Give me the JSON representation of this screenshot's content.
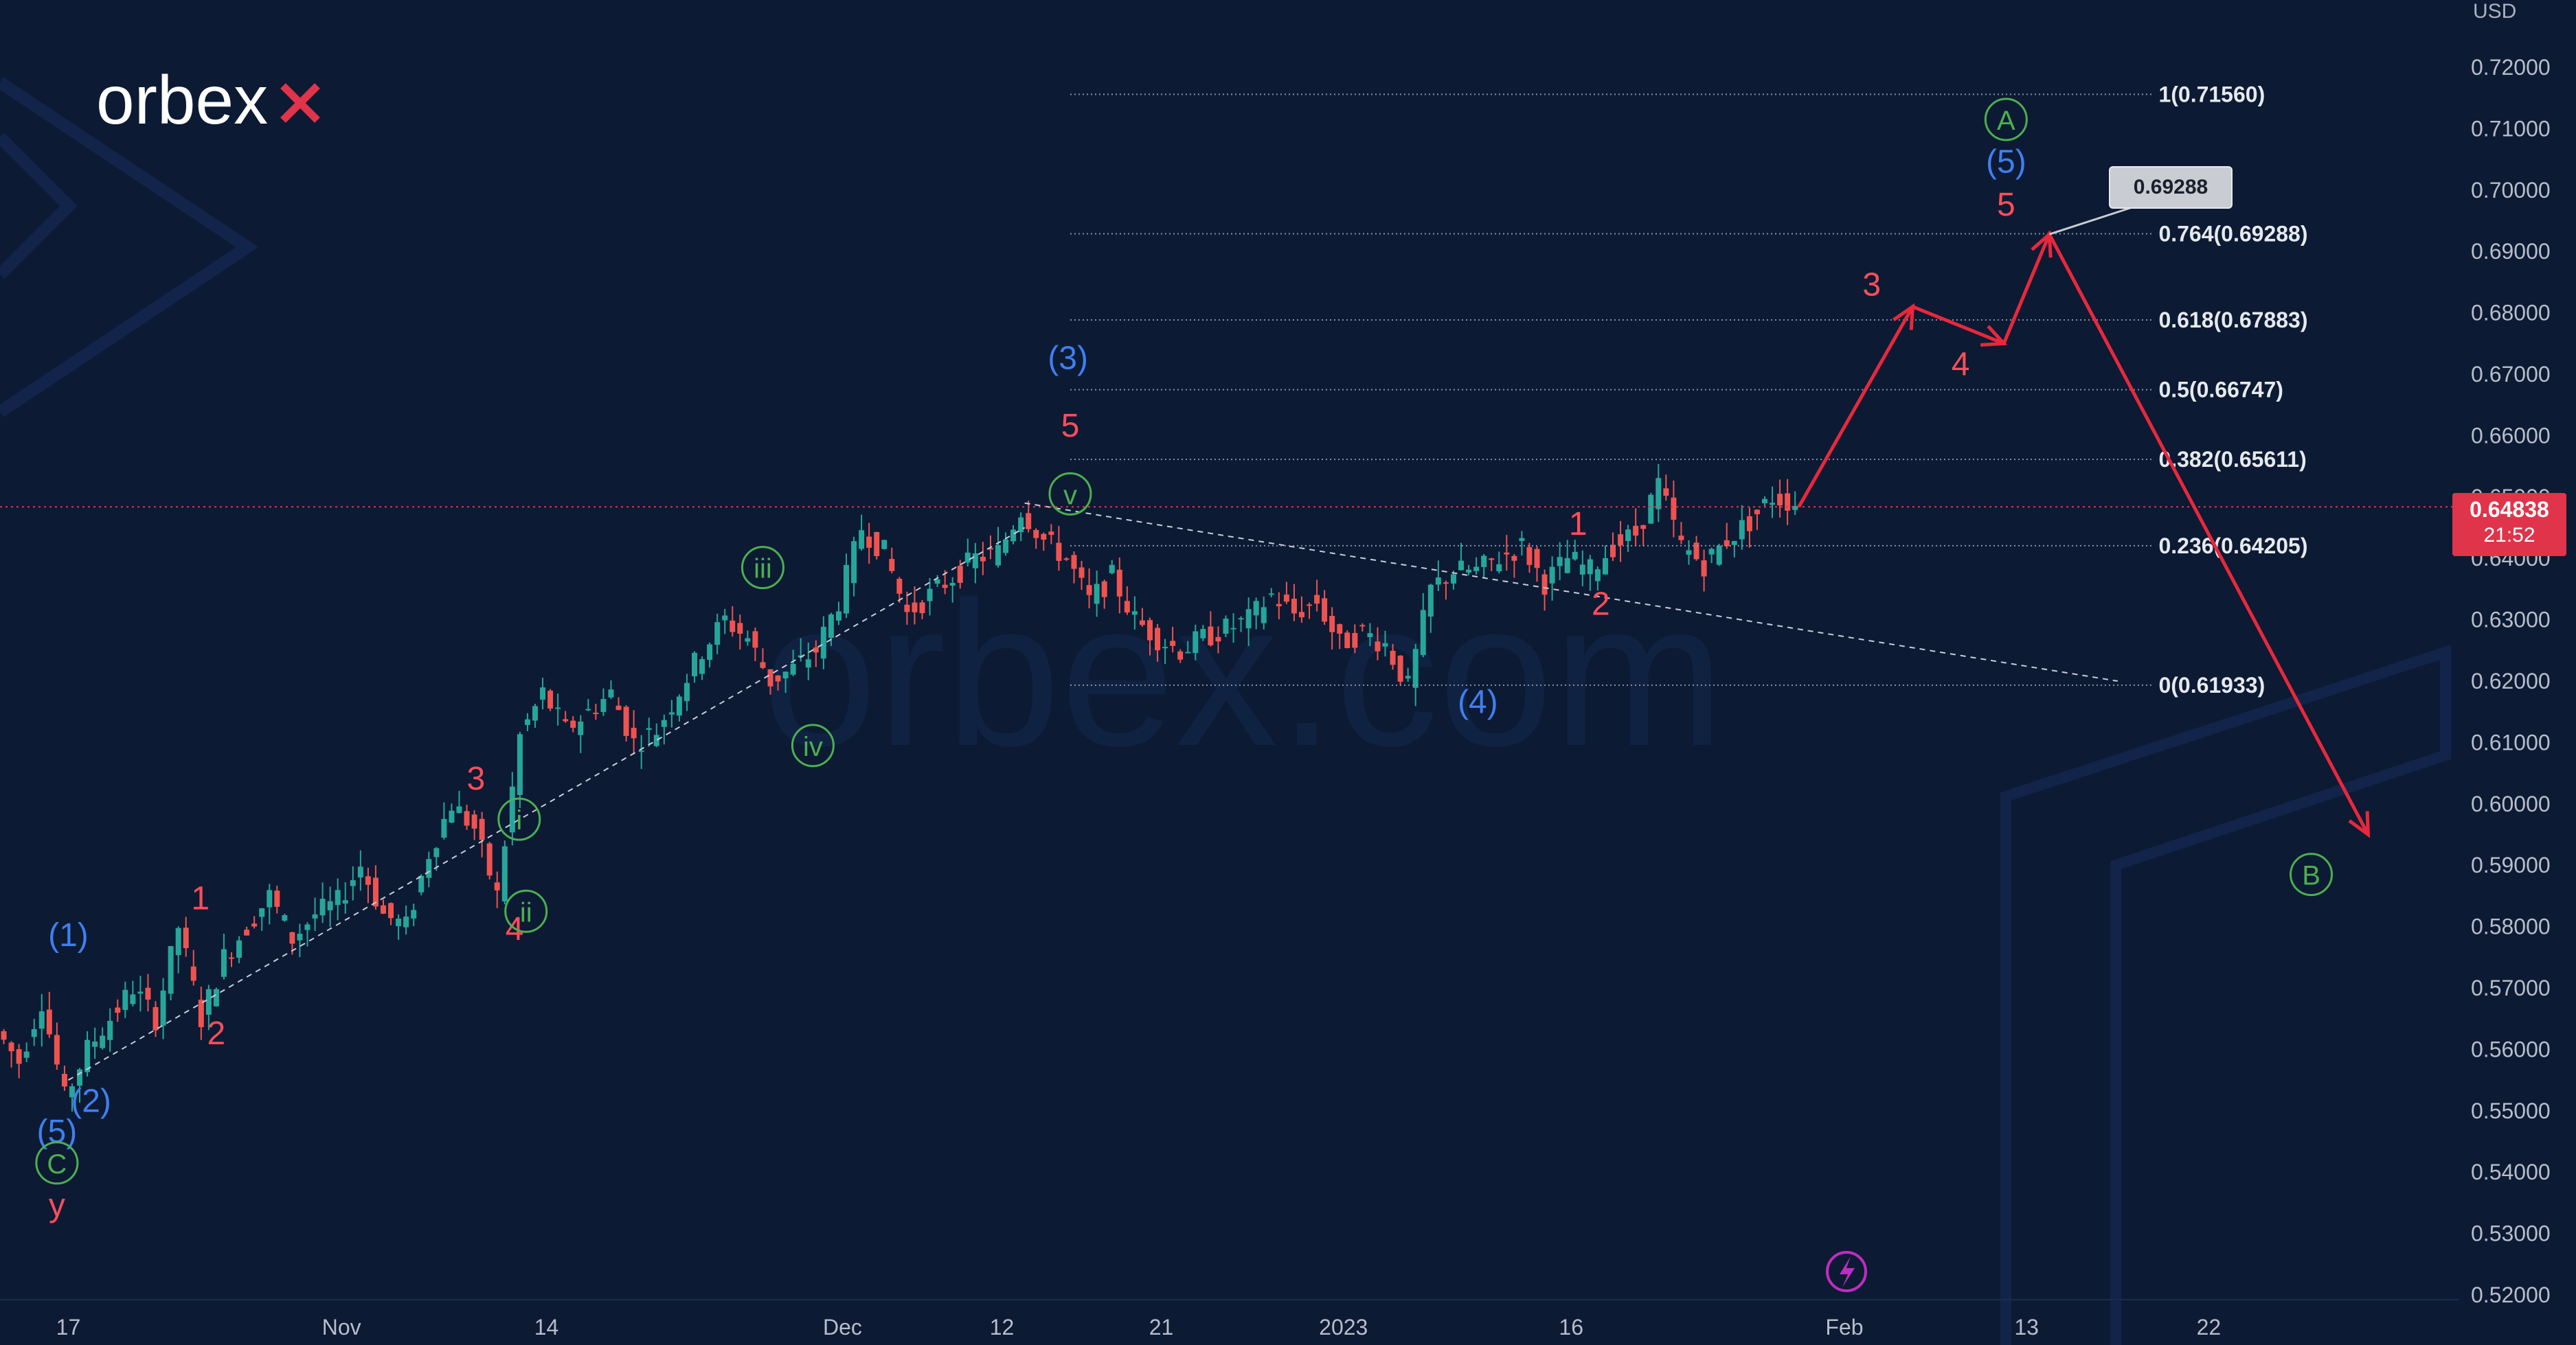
{
  "brand": {
    "logo_text": "orbex",
    "watermark": "orbex.com"
  },
  "currency_label": "USD",
  "current_price": {
    "value": "0.64838",
    "timer": "21:52"
  },
  "callout_value": "0.69288",
  "colors": {
    "background": "#0c1a33",
    "up": "#26a69a",
    "down": "#ef5350",
    "forecast": "#e8283c",
    "wave_red": "#ff4d5a",
    "wave_blue": "#3f7ff0",
    "wave_green": "#4caf50",
    "fib_line": "#8a93a6",
    "price_tag": "#e0344a"
  },
  "chart_data": {
    "type": "line",
    "title": "",
    "y_axis": {
      "unit": "USD",
      "range": [
        0.52,
        0.725
      ],
      "ticks": [
        0.52,
        0.53,
        0.54,
        0.55,
        0.56,
        0.57,
        0.58,
        0.59,
        0.6,
        0.61,
        0.62,
        0.63,
        0.64,
        0.65,
        0.66,
        0.67,
        0.68,
        0.69,
        0.7,
        0.71,
        0.72
      ],
      "tick_labels": [
        "0.52000",
        "0.53000",
        "0.54000",
        "0.55000",
        "0.56000",
        "0.57000",
        "0.58000",
        "0.59000",
        "0.60000",
        "0.61000",
        "0.62000",
        "0.63000",
        "0.64000",
        "0.65000",
        "0.66000",
        "0.67000",
        "0.68000",
        "0.69000",
        "0.70000",
        "0.71000",
        "0.72000"
      ]
    },
    "x_axis": {
      "range": [
        0,
        108
      ],
      "ticks": [
        {
          "x": 3,
          "label": "17"
        },
        {
          "x": 15,
          "label": "Nov"
        },
        {
          "x": 24,
          "label": "14"
        },
        {
          "x": 37,
          "label": "Dec"
        },
        {
          "x": 44,
          "label": "12"
        },
        {
          "x": 51,
          "label": "21"
        },
        {
          "x": 59,
          "label": "2023"
        },
        {
          "x": 69,
          "label": "16"
        },
        {
          "x": 81,
          "label": "Feb"
        },
        {
          "x": 89,
          "label": "13"
        },
        {
          "x": 97,
          "label": "22"
        }
      ]
    },
    "price_path": [
      [
        0,
        0.563
      ],
      [
        1,
        0.558
      ],
      [
        2,
        0.568
      ],
      [
        3,
        0.552
      ],
      [
        4,
        0.56
      ],
      [
        6,
        0.57
      ],
      [
        7,
        0.565
      ],
      [
        8,
        0.58
      ],
      [
        9,
        0.565
      ],
      [
        10,
        0.575
      ],
      [
        12,
        0.585
      ],
      [
        13,
        0.578
      ],
      [
        14,
        0.582
      ],
      [
        15,
        0.584
      ],
      [
        16,
        0.59
      ],
      [
        17,
        0.582
      ],
      [
        18,
        0.58
      ],
      [
        19,
        0.592
      ],
      [
        20,
        0.6
      ],
      [
        21,
        0.596
      ],
      [
        22,
        0.585
      ],
      [
        23,
        0.611
      ],
      [
        24,
        0.618
      ],
      [
        25,
        0.612
      ],
      [
        27,
        0.618
      ],
      [
        28,
        0.61
      ],
      [
        29,
        0.612
      ],
      [
        31,
        0.625
      ],
      [
        32,
        0.63
      ],
      [
        33,
        0.627
      ],
      [
        34,
        0.62
      ],
      [
        35,
        0.622
      ],
      [
        36,
        0.625
      ],
      [
        37,
        0.633
      ],
      [
        38,
        0.645
      ],
      [
        39,
        0.641
      ],
      [
        40,
        0.631
      ],
      [
        42,
        0.637
      ],
      [
        43,
        0.64
      ],
      [
        44,
        0.641
      ],
      [
        45,
        0.648
      ],
      [
        46,
        0.643
      ],
      [
        47,
        0.64
      ],
      [
        48,
        0.633
      ],
      [
        49,
        0.637
      ],
      [
        50,
        0.63
      ],
      [
        51,
        0.627
      ],
      [
        52,
        0.625
      ],
      [
        53,
        0.627
      ],
      [
        55,
        0.63
      ],
      [
        56,
        0.634
      ],
      [
        57,
        0.631
      ],
      [
        58,
        0.633
      ],
      [
        59,
        0.626
      ],
      [
        60,
        0.628
      ],
      [
        61,
        0.626
      ],
      [
        62,
        0.619
      ],
      [
        63,
        0.635
      ],
      [
        64,
        0.638
      ],
      [
        65,
        0.638
      ],
      [
        66,
        0.64
      ],
      [
        67,
        0.642
      ],
      [
        68,
        0.636
      ],
      [
        69,
        0.64
      ],
      [
        70,
        0.638
      ],
      [
        71,
        0.642
      ],
      [
        72,
        0.644
      ],
      [
        73,
        0.652
      ],
      [
        74,
        0.642
      ],
      [
        75,
        0.639
      ],
      [
        76,
        0.643
      ],
      [
        77,
        0.646
      ],
      [
        78,
        0.65
      ],
      [
        79,
        0.649
      ]
    ],
    "fibonacci_levels": [
      {
        "ratio": "1",
        "price": 0.7156,
        "label": "1(0.71560)"
      },
      {
        "ratio": "0.764",
        "price": 0.69288,
        "label": "0.764(0.69288)"
      },
      {
        "ratio": "0.618",
        "price": 0.67883,
        "label": "0.618(0.67883)"
      },
      {
        "ratio": "0.5",
        "price": 0.66747,
        "label": "0.5(0.66747)"
      },
      {
        "ratio": "0.382",
        "price": 0.65611,
        "label": "0.382(0.65611)"
      },
      {
        "ratio": "0.236",
        "price": 0.64205,
        "label": "0.236(0.64205)"
      },
      {
        "ratio": "0",
        "price": 0.61933,
        "label": "0(0.61933)"
      }
    ],
    "forecast_path": [
      [
        79,
        0.6484
      ],
      [
        84,
        0.681
      ],
      [
        88,
        0.675
      ],
      [
        90,
        0.6928
      ],
      [
        104,
        0.595
      ]
    ],
    "channel_lines": [
      {
        "from": [
          3,
          0.555
        ],
        "to": [
          45,
          0.645
        ]
      },
      {
        "from": [
          45,
          0.649
        ],
        "to": [
          93,
          0.62
        ]
      }
    ],
    "wave_labels": [
      {
        "text": "(1)",
        "x": 3,
        "y": 0.5785,
        "color": "blue"
      },
      {
        "text": "(2)",
        "x": 4,
        "y": 0.5515,
        "color": "blue"
      },
      {
        "text": "(5)",
        "x": 2.5,
        "y": 0.5465,
        "color": "blue"
      },
      {
        "text": "C",
        "x": 2.5,
        "y": 0.5415,
        "color": "green",
        "circled": true
      },
      {
        "text": "y",
        "x": 2.5,
        "y": 0.5345,
        "color": "red"
      },
      {
        "text": "1",
        "x": 8.8,
        "y": 0.5845,
        "color": "red"
      },
      {
        "text": "2",
        "x": 9.5,
        "y": 0.5625,
        "color": "red"
      },
      {
        "text": "3",
        "x": 20.9,
        "y": 0.604,
        "color": "red"
      },
      {
        "text": "4",
        "x": 22.6,
        "y": 0.5795,
        "color": "red"
      },
      {
        "text": "i",
        "x": 22.8,
        "y": 0.5975,
        "color": "green",
        "circled": true
      },
      {
        "text": "ii",
        "x": 23.1,
        "y": 0.5825,
        "color": "green",
        "circled": true
      },
      {
        "text": "iii",
        "x": 33.5,
        "y": 0.6385,
        "color": "green",
        "circled": true
      },
      {
        "text": "iv",
        "x": 35.7,
        "y": 0.6095,
        "color": "green",
        "circled": true
      },
      {
        "text": "(3)",
        "x": 46.9,
        "y": 0.6725,
        "color": "blue"
      },
      {
        "text": "5",
        "x": 47.0,
        "y": 0.6615,
        "color": "red"
      },
      {
        "text": "v",
        "x": 47.0,
        "y": 0.6505,
        "color": "green",
        "circled": true
      },
      {
        "text": "(4)",
        "x": 64.9,
        "y": 0.6165,
        "color": "blue"
      },
      {
        "text": "1",
        "x": 69.3,
        "y": 0.6455,
        "color": "red"
      },
      {
        "text": "2",
        "x": 70.3,
        "y": 0.6325,
        "color": "red"
      },
      {
        "text": "3",
        "x": 82.2,
        "y": 0.6845,
        "color": "red"
      },
      {
        "text": "4",
        "x": 86.1,
        "y": 0.6715,
        "color": "red"
      },
      {
        "text": "5",
        "x": 88.1,
        "y": 0.6975,
        "color": "red"
      },
      {
        "text": "(5)",
        "x": 88.1,
        "y": 0.7045,
        "color": "blue"
      },
      {
        "text": "A",
        "x": 88.1,
        "y": 0.7115,
        "color": "green",
        "circled": true
      },
      {
        "text": "B",
        "x": 101.5,
        "y": 0.5885,
        "color": "green",
        "circled": true
      }
    ],
    "legend": "none",
    "grid": false
  }
}
